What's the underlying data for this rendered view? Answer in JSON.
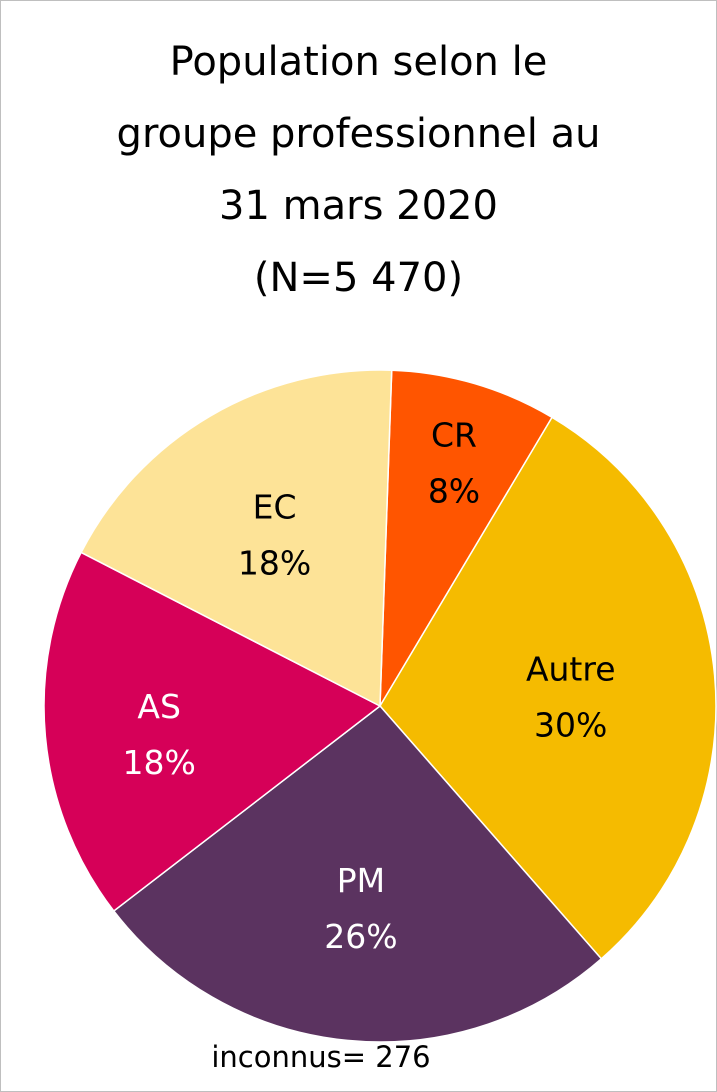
{
  "chart_data": {
    "type": "pie",
    "title_lines": [
      "Population selon le",
      "groupe professionnel au",
      "31 mars 2020",
      "(N=5 470)"
    ],
    "slices": [
      {
        "label": "CR",
        "percent_label": "8%",
        "value": 8,
        "color": "#ff5500",
        "text_color": "#000000"
      },
      {
        "label": "Autre",
        "percent_label": "30%",
        "value": 30,
        "color": "#f5bb00",
        "text_color": "#000000"
      },
      {
        "label": "PM",
        "percent_label": "26%",
        "value": 26,
        "color": "#5b3360",
        "text_color": "#ffffff"
      },
      {
        "label": "AS",
        "percent_label": "18%",
        "value": 18,
        "color": "#d60058",
        "text_color": "#ffffff"
      },
      {
        "label": "EC",
        "percent_label": "18%",
        "value": 18,
        "color": "#fde397",
        "text_color": "#000000"
      }
    ],
    "start_angle_deg": 2,
    "direction": "clockwise",
    "legend": "none",
    "note": "inconnus= 276"
  }
}
